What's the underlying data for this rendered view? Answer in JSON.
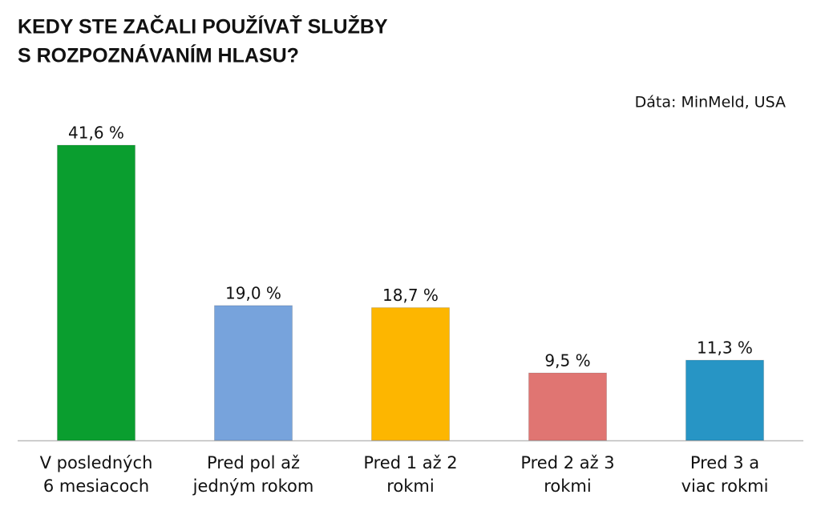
{
  "chart_data": {
    "type": "bar",
    "title": [
      "KEDY STE ZAČALI POUŽÍVAŤ SLUŽBY",
      "S ROZPOZNÁVANÍM HLASU?"
    ],
    "source": "Dáta: MinMeld, USA",
    "categories": [
      [
        "V posledných",
        "6 mesiacoch"
      ],
      [
        "Pred pol až",
        "jedným rokom"
      ],
      [
        "Pred 1 až 2",
        "rokmi"
      ],
      [
        "Pred 2 až 3",
        "rokmi"
      ],
      [
        "Pred 3 a",
        "viac rokmi"
      ]
    ],
    "values": [
      41.6,
      19.0,
      18.7,
      9.5,
      11.3
    ],
    "value_labels": [
      "41,6 %",
      "19,0 %",
      "18,7 %",
      "9,5 %",
      "11,3 %"
    ],
    "colors": [
      "#0a9e2f",
      "#77a3dc",
      "#fdb600",
      "#e07572",
      "#2795c5"
    ]
  }
}
